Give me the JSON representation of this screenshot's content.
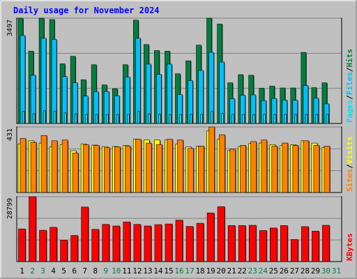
{
  "title": "Daily usage for November 2024",
  "colors": {
    "background": "#c0c0c0",
    "title": "#0000ff",
    "hits": "#008040",
    "files": "#00c0ff",
    "pages": "#00e0ff",
    "visits": "#ffff00",
    "sites": "#ff8000",
    "kbytes": "#ff0000",
    "weekend_label": "#008040",
    "weekday_label": "#000000"
  },
  "chart_data": [
    {
      "type": "bar",
      "panel": "requests",
      "categories": [
        "1",
        "2",
        "3",
        "4",
        "5",
        "6",
        "7",
        "8",
        "9",
        "10",
        "11",
        "12",
        "13",
        "14",
        "15",
        "16",
        "17",
        "18",
        "19",
        "20",
        "21",
        "22",
        "23",
        "24",
        "25",
        "26",
        "27",
        "28",
        "29",
        "30",
        "31"
      ],
      "weekend_days": [
        2,
        3,
        9,
        10,
        16,
        17,
        23,
        24,
        30,
        31
      ],
      "ymax_label": "3497",
      "ylim": [
        0,
        3497
      ],
      "legend": [
        {
          "label": "Hits",
          "color": "#008040"
        },
        {
          "label": "/",
          "color": "#000000"
        },
        {
          "label": "Files",
          "color": "#00c0ff"
        },
        {
          "label": "/",
          "color": "#000000"
        },
        {
          "label": "Pages",
          "color": "#00e0ff"
        }
      ],
      "series": [
        {
          "name": "Hits",
          "values": [
            3497,
            2400,
            3497,
            3450,
            1980,
            2230,
            1450,
            1950,
            1280,
            1150,
            1950,
            3430,
            2620,
            2420,
            2400,
            1650,
            2080,
            2600,
            3497,
            3300,
            1350,
            1620,
            1600,
            1170,
            1240,
            1180,
            1180,
            2360,
            1190,
            1350,
            0
          ]
        },
        {
          "name": "Files",
          "values": [
            2920,
            1600,
            2830,
            2790,
            1560,
            1350,
            910,
            1050,
            1060,
            920,
            1540,
            2830,
            1970,
            1630,
            1970,
            960,
            1420,
            1760,
            2360,
            2040,
            820,
            940,
            950,
            760,
            830,
            780,
            770,
            1260,
            840,
            650,
            0
          ]
        },
        {
          "name": "Pages",
          "values": [
            400,
            320,
            420,
            400,
            350,
            320,
            300,
            300,
            300,
            300,
            300,
            400,
            320,
            300,
            300,
            300,
            300,
            300,
            400,
            330,
            300,
            300,
            300,
            300,
            300,
            300,
            300,
            300,
            300,
            300,
            0
          ]
        }
      ]
    },
    {
      "type": "bar",
      "panel": "visitors",
      "categories": [
        "1",
        "2",
        "3",
        "4",
        "5",
        "6",
        "7",
        "8",
        "9",
        "10",
        "11",
        "12",
        "13",
        "14",
        "15",
        "16",
        "17",
        "18",
        "19",
        "20",
        "21",
        "22",
        "23",
        "24",
        "25",
        "26",
        "27",
        "28",
        "29",
        "30",
        "31"
      ],
      "ymax_label": "431",
      "ylim": [
        0,
        431
      ],
      "legend": [
        {
          "label": "Visits",
          "color": "#ffff00"
        },
        {
          "label": "/",
          "color": "#000000"
        },
        {
          "label": "Sites",
          "color": "#ff8000"
        }
      ],
      "series": [
        {
          "name": "Visits",
          "values": [
            320,
            340,
            325,
            300,
            315,
            275,
            320,
            312,
            302,
            302,
            310,
            350,
            345,
            345,
            345,
            318,
            300,
            305,
            405,
            350,
            275,
            302,
            322,
            325,
            315,
            310,
            315,
            340,
            325,
            295,
            0
          ]
        },
        {
          "name": "Sites",
          "values": [
            355,
            330,
            375,
            340,
            345,
            260,
            315,
            310,
            295,
            300,
            305,
            350,
            325,
            315,
            350,
            345,
            290,
            305,
            431,
            380,
            285,
            310,
            335,
            345,
            305,
            325,
            310,
            340,
            310,
            305,
            0
          ]
        }
      ]
    },
    {
      "type": "bar",
      "panel": "kbytes",
      "categories": [
        "1",
        "2",
        "3",
        "4",
        "5",
        "6",
        "7",
        "8",
        "9",
        "10",
        "11",
        "12",
        "13",
        "14",
        "15",
        "16",
        "17",
        "18",
        "19",
        "20",
        "21",
        "22",
        "23",
        "24",
        "25",
        "26",
        "27",
        "28",
        "29",
        "30",
        "31"
      ],
      "ymax_label": "28799",
      "ylim": [
        0,
        28799
      ],
      "legend": [
        {
          "label": "KBytes",
          "color": "#ff0000"
        }
      ],
      "series": [
        {
          "name": "KBytes",
          "values": [
            14500,
            28799,
            13900,
            15200,
            9500,
            11600,
            24200,
            14300,
            16500,
            15800,
            17600,
            16500,
            15800,
            16400,
            16700,
            18400,
            15600,
            17000,
            21600,
            24400,
            16000,
            16000,
            16100,
            13800,
            14900,
            16000,
            9800,
            15500,
            13500,
            16100,
            0
          ]
        }
      ]
    }
  ]
}
